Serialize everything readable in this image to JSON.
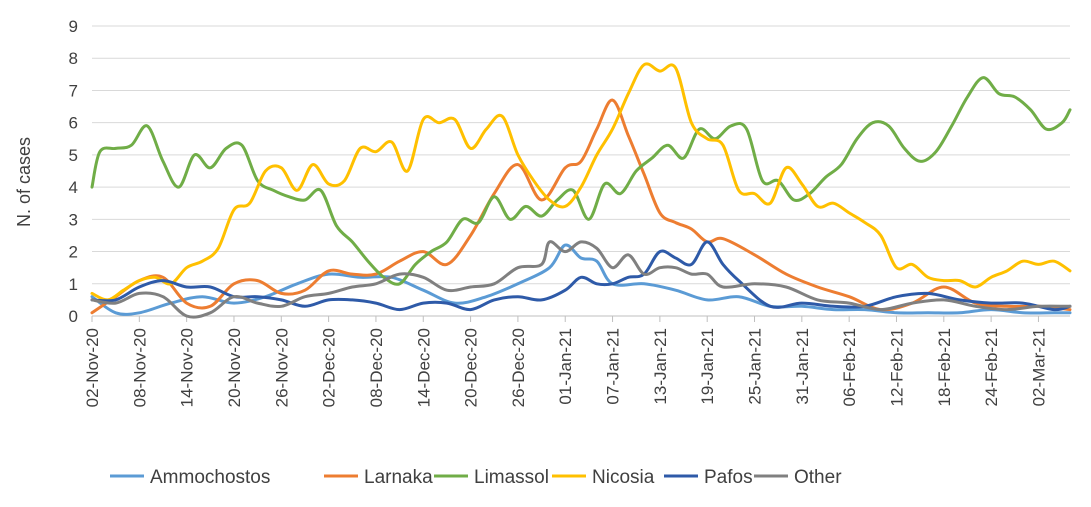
{
  "chart_data": {
    "type": "line",
    "title": "",
    "xlabel": "",
    "ylabel": "N. of cases",
    "ylim": [
      0,
      9
    ],
    "yticks": [
      "0",
      "1",
      "2",
      "3",
      "4",
      "5",
      "6",
      "7",
      "8",
      "9"
    ],
    "grid": true,
    "legend_position": "bottom",
    "x_range_days": [
      0,
      124
    ],
    "x_tick_labels": [
      "02-Nov-20",
      "08-Nov-20",
      "14-Nov-20",
      "20-Nov-20",
      "26-Nov-20",
      "02-Dec-20",
      "08-Dec-20",
      "14-Dec-20",
      "20-Dec-20",
      "26-Dec-20",
      "01-Jan-21",
      "07-Jan-21",
      "13-Jan-21",
      "19-Jan-21",
      "25-Jan-21",
      "31-Jan-21",
      "06-Feb-21",
      "12-Feb-21",
      "18-Feb-21",
      "24-Feb-21",
      "02-Mar-21"
    ],
    "x_tick_days": [
      0,
      6,
      12,
      18,
      24,
      30,
      36,
      42,
      48,
      54,
      60,
      66,
      72,
      78,
      84,
      90,
      96,
      102,
      108,
      114,
      120
    ],
    "series": [
      {
        "name": "Ammochostos",
        "color": "#5B9BD5",
        "x": [
          0,
          3,
          6,
          10,
          14,
          18,
          22,
          26,
          30,
          34,
          38,
          42,
          46,
          50,
          54,
          58,
          60,
          62,
          64,
          66,
          70,
          74,
          78,
          82,
          86,
          90,
          94,
          98,
          102,
          106,
          110,
          114,
          118,
          122,
          124
        ],
        "values": [
          0.6,
          0.1,
          0.1,
          0.4,
          0.6,
          0.4,
          0.6,
          1.0,
          1.3,
          1.2,
          1.2,
          0.8,
          0.4,
          0.6,
          1.0,
          1.5,
          2.2,
          1.8,
          1.7,
          1.0,
          1.0,
          0.8,
          0.5,
          0.6,
          0.3,
          0.3,
          0.2,
          0.2,
          0.1,
          0.1,
          0.1,
          0.2,
          0.1,
          0.1,
          0.1
        ]
      },
      {
        "name": "Larnaka",
        "color": "#ED7D31",
        "x": [
          0,
          3,
          6,
          9,
          12,
          15,
          18,
          21,
          24,
          27,
          30,
          33,
          36,
          39,
          42,
          45,
          48,
          51,
          54,
          57,
          60,
          62,
          64,
          66,
          68,
          70,
          72,
          74,
          76,
          78,
          80,
          84,
          88,
          92,
          96,
          100,
          104,
          108,
          112,
          116,
          120,
          124
        ],
        "values": [
          0.1,
          0.6,
          1.1,
          1.2,
          0.4,
          0.3,
          1.0,
          1.1,
          0.7,
          0.8,
          1.4,
          1.3,
          1.3,
          1.7,
          2.0,
          1.6,
          2.5,
          3.8,
          4.7,
          3.6,
          4.6,
          4.8,
          5.8,
          6.7,
          5.6,
          4.4,
          3.2,
          2.9,
          2.7,
          2.3,
          2.4,
          1.9,
          1.3,
          0.9,
          0.6,
          0.2,
          0.4,
          0.9,
          0.4,
          0.3,
          0.3,
          0.2
        ]
      },
      {
        "name": "Limassol",
        "color": "#70AD47",
        "x": [
          0,
          1,
          3,
          5,
          7,
          9,
          11,
          13,
          15,
          17,
          19,
          21,
          23,
          25,
          27,
          29,
          31,
          33,
          35,
          37,
          39,
          41,
          43,
          45,
          47,
          49,
          51,
          53,
          55,
          57,
          59,
          61,
          63,
          65,
          67,
          69,
          71,
          73,
          75,
          77,
          79,
          81,
          83,
          85,
          87,
          89,
          91,
          93,
          95,
          97,
          99,
          101,
          103,
          105,
          107,
          109,
          111,
          113,
          115,
          117,
          119,
          121,
          123,
          124
        ],
        "values": [
          4.0,
          5.1,
          5.2,
          5.3,
          5.9,
          4.8,
          4.0,
          5.0,
          4.6,
          5.2,
          5.3,
          4.2,
          3.9,
          3.7,
          3.6,
          3.9,
          2.8,
          2.3,
          1.7,
          1.2,
          1.0,
          1.6,
          2.0,
          2.3,
          3.0,
          2.9,
          3.7,
          3.0,
          3.4,
          3.1,
          3.6,
          3.9,
          3.0,
          4.1,
          3.8,
          4.5,
          4.9,
          5.3,
          4.9,
          5.8,
          5.5,
          5.9,
          5.8,
          4.2,
          4.2,
          3.6,
          3.8,
          4.3,
          4.7,
          5.5,
          6.0,
          5.9,
          5.2,
          4.8,
          5.1,
          5.9,
          6.8,
          7.4,
          6.9,
          6.8,
          6.4,
          5.8,
          6.0,
          6.4
        ]
      },
      {
        "name": "Nicosia",
        "color": "#FFC000",
        "x": [
          0,
          2,
          4,
          6,
          8,
          10,
          12,
          14,
          16,
          18,
          20,
          22,
          24,
          26,
          28,
          30,
          32,
          34,
          36,
          38,
          40,
          42,
          44,
          46,
          48,
          50,
          52,
          54,
          56,
          58,
          60,
          62,
          64,
          66,
          68,
          70,
          72,
          74,
          76,
          78,
          80,
          82,
          84,
          86,
          88,
          90,
          92,
          94,
          96,
          98,
          100,
          102,
          104,
          106,
          108,
          110,
          112,
          114,
          116,
          118,
          120,
          122,
          124
        ],
        "values": [
          0.7,
          0.5,
          0.8,
          1.1,
          1.2,
          1.0,
          1.5,
          1.7,
          2.1,
          3.3,
          3.5,
          4.5,
          4.6,
          3.9,
          4.7,
          4.1,
          4.2,
          5.2,
          5.1,
          5.4,
          4.5,
          6.1,
          6.0,
          6.1,
          5.2,
          5.8,
          6.2,
          5.0,
          4.2,
          3.6,
          3.4,
          4.0,
          5.0,
          5.8,
          6.9,
          7.8,
          7.6,
          7.7,
          6.0,
          5.5,
          5.3,
          3.9,
          3.8,
          3.5,
          4.6,
          4.1,
          3.4,
          3.5,
          3.2,
          2.9,
          2.5,
          1.5,
          1.6,
          1.2,
          1.1,
          1.1,
          0.9,
          1.2,
          1.4,
          1.7,
          1.6,
          1.7,
          1.4
        ]
      },
      {
        "name": "Pafos",
        "color": "#2E5AA8",
        "x": [
          0,
          3,
          6,
          9,
          12,
          15,
          18,
          21,
          24,
          27,
          30,
          33,
          36,
          39,
          42,
          45,
          48,
          51,
          54,
          57,
          60,
          62,
          64,
          66,
          68,
          70,
          72,
          74,
          76,
          78,
          80,
          82,
          86,
          90,
          94,
          98,
          102,
          106,
          110,
          114,
          118,
          122,
          124
        ],
        "values": [
          0.5,
          0.5,
          0.9,
          1.1,
          0.9,
          0.9,
          0.6,
          0.6,
          0.5,
          0.3,
          0.5,
          0.5,
          0.4,
          0.2,
          0.4,
          0.4,
          0.2,
          0.5,
          0.6,
          0.5,
          0.8,
          1.2,
          1.0,
          1.0,
          1.2,
          1.3,
          2.0,
          1.8,
          1.6,
          2.3,
          1.6,
          1.1,
          0.3,
          0.4,
          0.3,
          0.3,
          0.6,
          0.7,
          0.5,
          0.4,
          0.4,
          0.2,
          0.3
        ]
      },
      {
        "name": "Other",
        "color": "#808080",
        "x": [
          0,
          3,
          6,
          9,
          12,
          15,
          18,
          21,
          24,
          27,
          30,
          33,
          36,
          39,
          42,
          45,
          48,
          51,
          54,
          57,
          58,
          60,
          62,
          64,
          66,
          68,
          70,
          72,
          74,
          76,
          78,
          80,
          84,
          88,
          92,
          96,
          100,
          104,
          108,
          112,
          116,
          120,
          124
        ],
        "values": [
          0.5,
          0.4,
          0.7,
          0.6,
          0.0,
          0.1,
          0.6,
          0.4,
          0.3,
          0.6,
          0.7,
          0.9,
          1.0,
          1.3,
          1.2,
          0.8,
          0.9,
          1.0,
          1.5,
          1.6,
          2.3,
          2.0,
          2.3,
          2.1,
          1.5,
          1.9,
          1.3,
          1.5,
          1.5,
          1.3,
          1.3,
          0.9,
          1.0,
          0.9,
          0.5,
          0.4,
          0.2,
          0.4,
          0.5,
          0.3,
          0.2,
          0.3,
          0.3
        ]
      }
    ]
  }
}
